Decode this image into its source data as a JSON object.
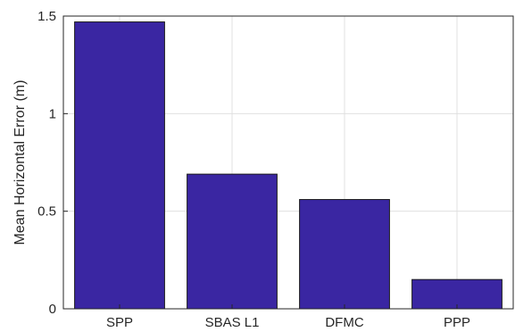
{
  "chart_data": {
    "type": "bar",
    "categories": [
      "SPP",
      "SBAS L1",
      "DFMC",
      "PPP"
    ],
    "values": [
      1.47,
      0.69,
      0.56,
      0.15
    ],
    "title": "",
    "xlabel": "",
    "ylabel": "Mean Horizontal Error (m)",
    "ylim": [
      0,
      1.5
    ],
    "yticks": [
      0,
      0.5,
      1,
      1.5
    ],
    "ytick_labels": [
      "0",
      "0.5",
      "1",
      "1.5"
    ],
    "grid": true,
    "bar_color": "#3a26a2",
    "bar_edge_color": "#1a1a1a"
  }
}
